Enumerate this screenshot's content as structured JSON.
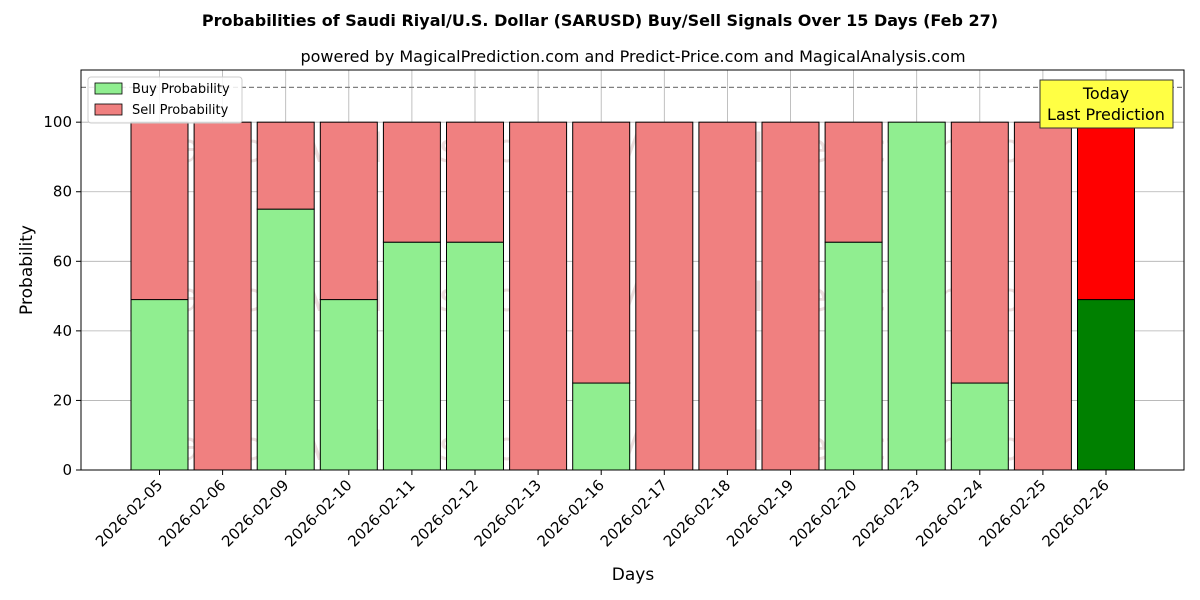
{
  "chart_data": {
    "type": "bar",
    "title": "Probabilities of Saudi Riyal/U.S. Dollar (SARUSD) Buy/Sell Signals Over 15 Days (Feb 27)",
    "subtitle": "powered by MagicalPrediction.com and Predict-Price.com and MagicalAnalysis.com",
    "xlabel": "Days",
    "ylabel": "Probability",
    "ylim": [
      0,
      115
    ],
    "yticks": [
      0,
      20,
      40,
      60,
      80,
      100
    ],
    "reference_line": 110,
    "grid": true,
    "legend_position": "top-left",
    "categories": [
      "2026-02-05",
      "2026-02-06",
      "2026-02-09",
      "2026-02-10",
      "2026-02-11",
      "2026-02-12",
      "2026-02-13",
      "2026-02-16",
      "2026-02-17",
      "2026-02-18",
      "2026-02-19",
      "2026-02-20",
      "2026-02-23",
      "2026-02-24",
      "2026-02-25",
      "2026-02-26"
    ],
    "series": [
      {
        "name": "Buy Probability",
        "color": "#90ee90",
        "highlight_color": "#008000",
        "values": [
          49,
          0,
          75,
          49,
          65.5,
          65.5,
          0,
          25,
          0,
          0,
          0,
          65.5,
          100,
          25,
          0,
          49
        ]
      },
      {
        "name": "Sell Probability",
        "color": "#f08080",
        "highlight_color": "#ff0000",
        "values": [
          51,
          100,
          25,
          51,
          34.5,
          34.5,
          100,
          75,
          100,
          100,
          100,
          34.5,
          0,
          75,
          100,
          51
        ]
      }
    ],
    "highlight_index": 15,
    "annotation": {
      "lines": [
        "Today",
        "Last Prediction"
      ],
      "background": "#ffff44"
    },
    "watermarks": [
      "MagicalAnalysis.com",
      "MagicalPrediction.com"
    ]
  }
}
